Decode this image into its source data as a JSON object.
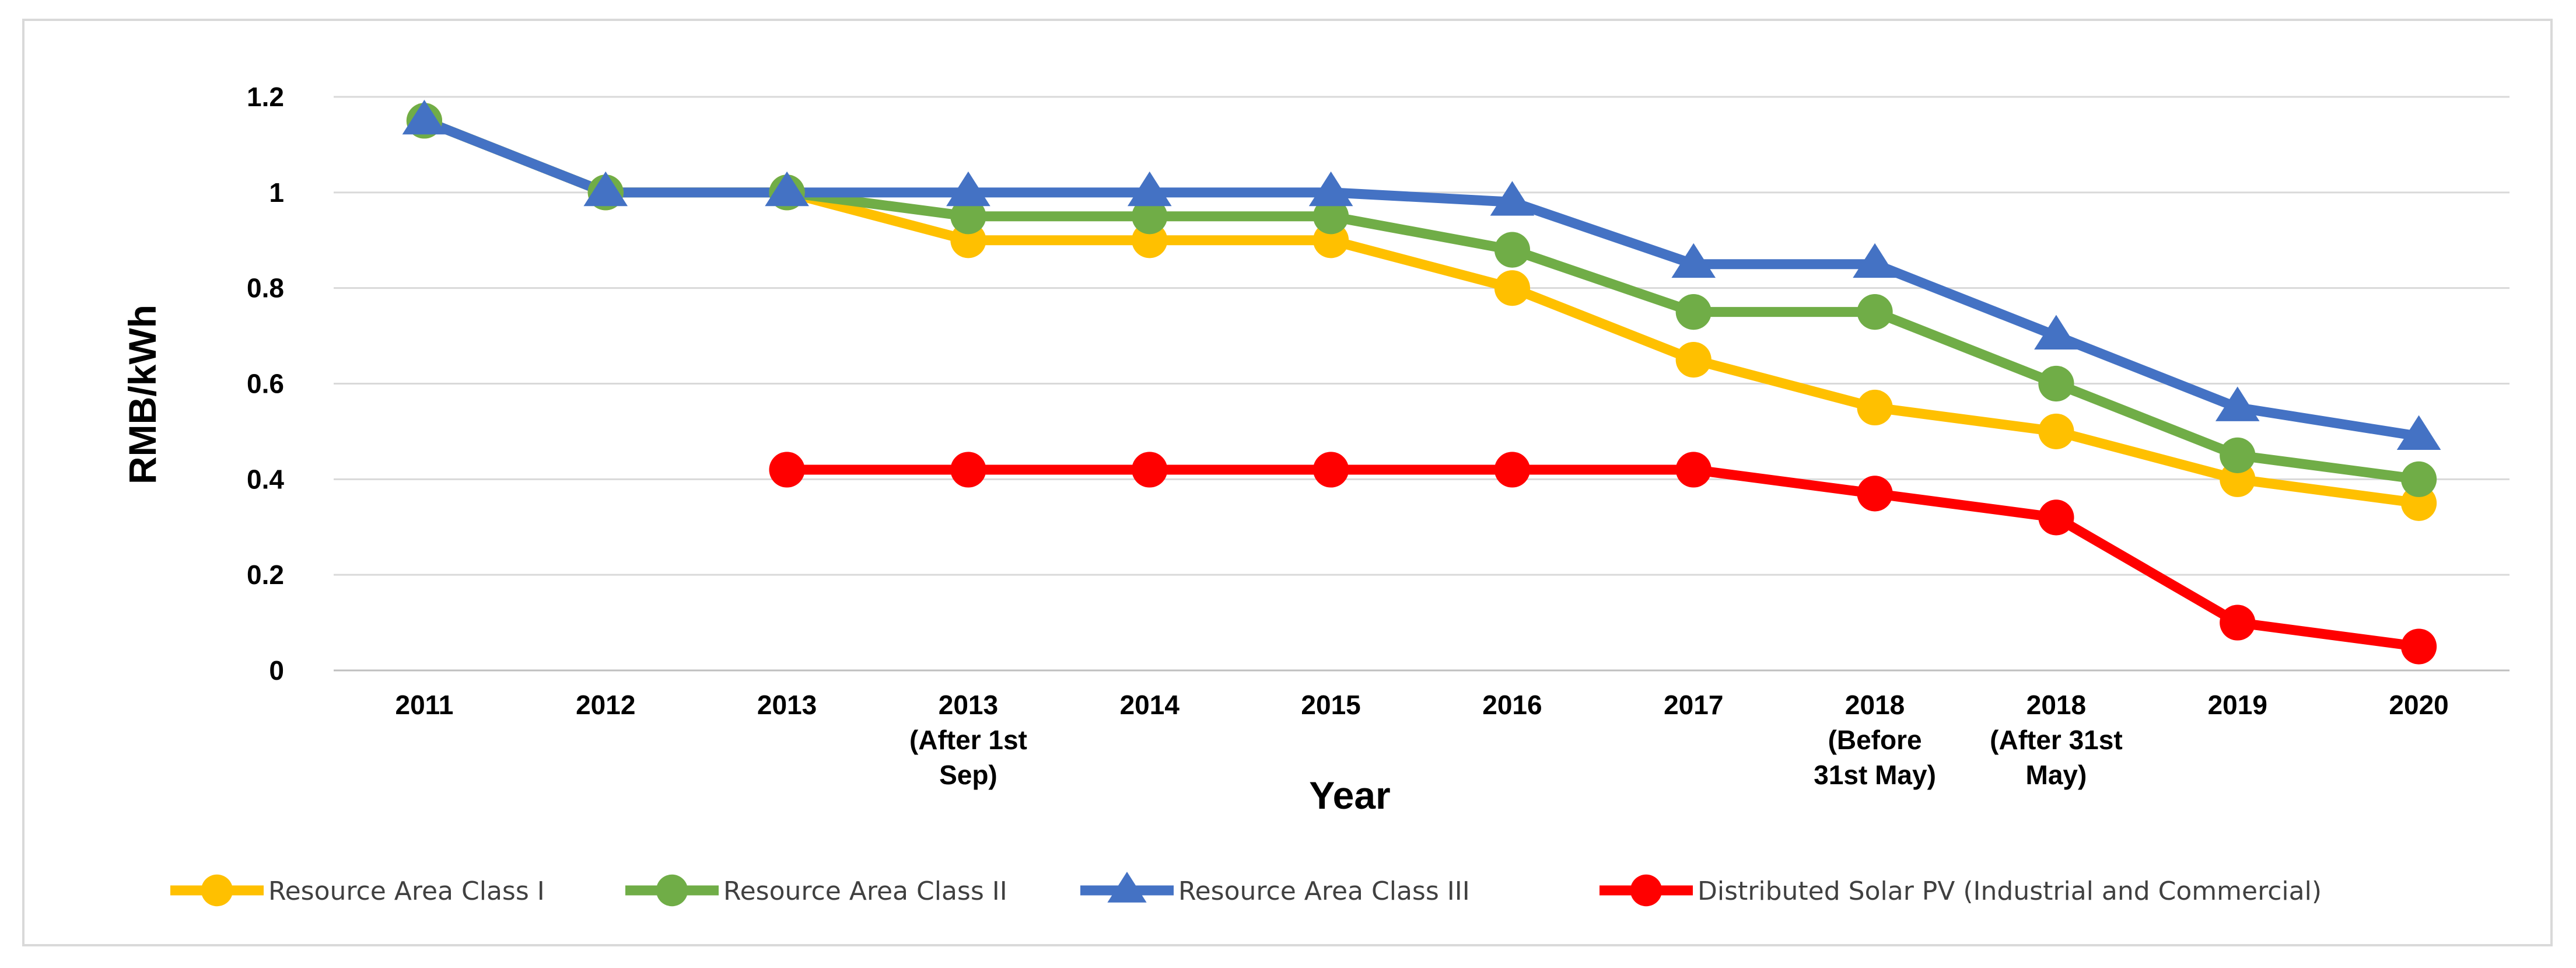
{
  "chart_data": {
    "type": "line",
    "title": "",
    "xlabel": "Year",
    "ylabel": "RMB/kWh",
    "ylim": [
      0,
      1.2
    ],
    "yticks": [
      "0",
      "0.2",
      "0.4",
      "0.6",
      "0.8",
      "1",
      "1.2"
    ],
    "grid": true,
    "legend_position": "bottom",
    "categories": [
      [
        "2011"
      ],
      [
        "2012"
      ],
      [
        "2013"
      ],
      [
        "2013",
        "(After 1st",
        "Sep)"
      ],
      [
        "2014"
      ],
      [
        "2015"
      ],
      [
        "2016"
      ],
      [
        "2017"
      ],
      [
        "2018",
        "(Before",
        "31st May)"
      ],
      [
        "2018",
        "(After 31st",
        "May)"
      ],
      [
        "2019"
      ],
      [
        "2020"
      ]
    ],
    "series": [
      {
        "name": "Resource Area Class I",
        "color": "#ffc000",
        "marker": "circle",
        "values": [
          1.15,
          1.0,
          1.0,
          0.9,
          0.9,
          0.9,
          0.8,
          0.65,
          0.55,
          0.5,
          0.4,
          0.35
        ]
      },
      {
        "name": "Resource Area Class II",
        "color": "#70ad47",
        "marker": "circle",
        "values": [
          1.15,
          1.0,
          1.0,
          0.95,
          0.95,
          0.95,
          0.88,
          0.75,
          0.75,
          0.6,
          0.45,
          0.4
        ]
      },
      {
        "name": "Resource Area Class III",
        "color": "#4472c4",
        "marker": "triangle",
        "values": [
          1.15,
          1.0,
          1.0,
          1.0,
          1.0,
          1.0,
          0.98,
          0.85,
          0.85,
          0.7,
          0.55,
          0.49
        ]
      },
      {
        "name": "Distributed Solar PV (Industrial and Commercial)",
        "color": "#ff0000",
        "marker": "circle",
        "values": [
          null,
          null,
          0.42,
          0.42,
          0.42,
          0.42,
          0.42,
          0.42,
          0.37,
          0.32,
          0.1,
          0.05
        ]
      }
    ]
  }
}
